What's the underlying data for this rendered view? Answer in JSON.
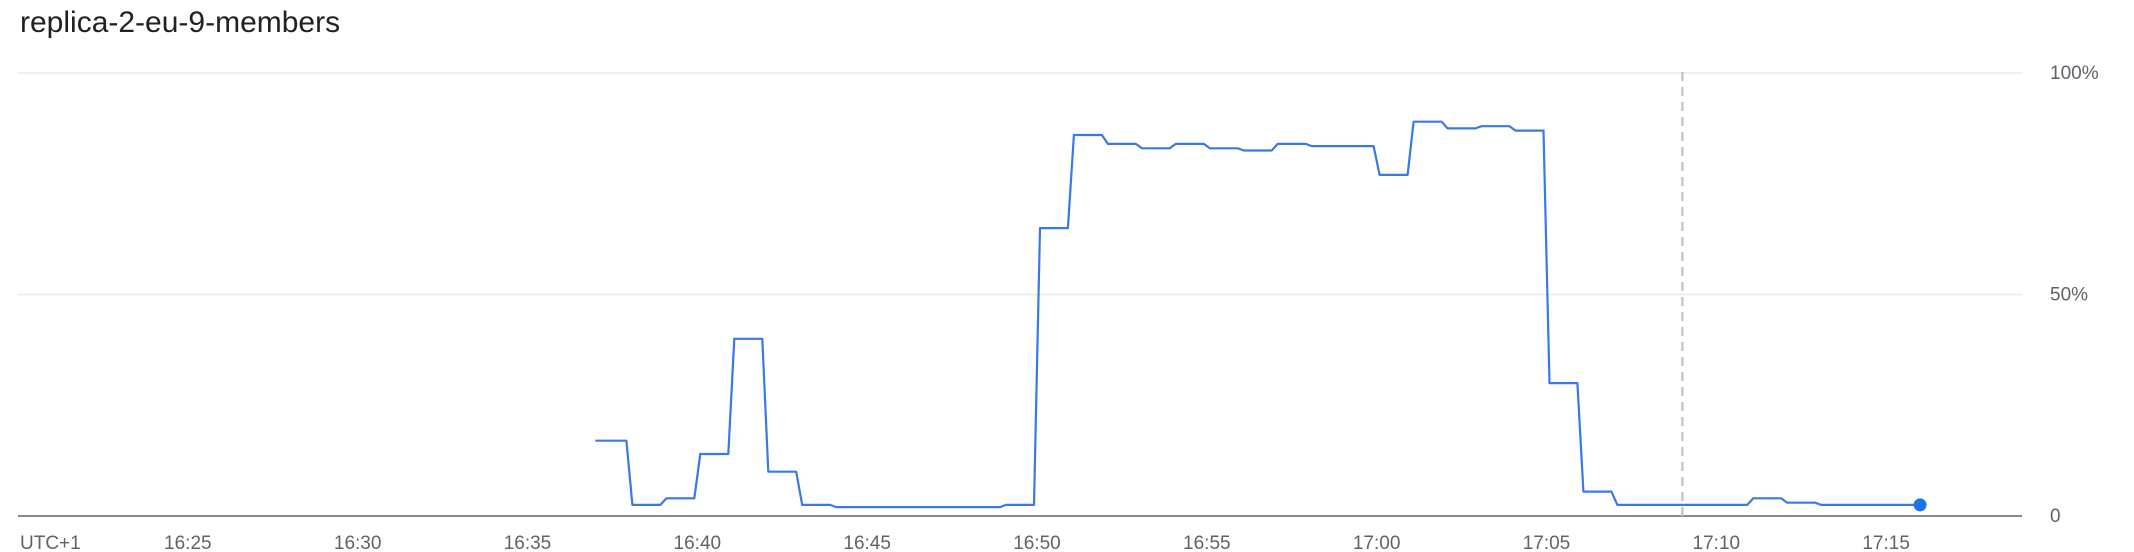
{
  "title": "replica-2-eu-9-members",
  "colors": {
    "series": "#3b78e7",
    "grid": "#e8eaed",
    "axis": "#5f6368",
    "cursor": "#c8c8c8",
    "text": "#5f6368"
  },
  "chart_data": {
    "type": "line",
    "title": "replica-2-eu-9-members",
    "xlabel": "",
    "ylabel": "",
    "timezone_label": "UTC+1",
    "x_ticks": [
      "16:25",
      "16:30",
      "16:35",
      "16:40",
      "16:45",
      "16:50",
      "16:55",
      "17:00",
      "17:05",
      "17:10",
      "17:15"
    ],
    "y_ticks": [
      "0",
      "50%",
      "100%"
    ],
    "xlim": [
      "16:20",
      "17:19"
    ],
    "ylim": [
      0,
      100
    ],
    "grid": true,
    "y_axis_position": "right",
    "cursor_time": "17:09",
    "series": [
      {
        "x": [
          "16:37",
          "16:38",
          "16:39",
          "16:40",
          "16:41",
          "16:42",
          "16:43",
          "16:44",
          "16:45",
          "16:46",
          "16:47",
          "16:48",
          "16:49",
          "16:50",
          "16:51",
          "16:52",
          "16:53",
          "16:54",
          "16:55",
          "16:56",
          "16:57",
          "16:58",
          "16:59",
          "17:00",
          "17:01",
          "17:02",
          "17:03",
          "17:04",
          "17:05",
          "17:06",
          "17:07",
          "17:08",
          "17:09",
          "17:10",
          "17:11",
          "17:12",
          "17:13",
          "17:14",
          "17:15",
          "17:16"
        ],
        "y": [
          17,
          2.5,
          4,
          14,
          40,
          10,
          2.5,
          2,
          2,
          2,
          2,
          2,
          2.5,
          65,
          86,
          84,
          83,
          84,
          83,
          82.5,
          84,
          83.5,
          83.5,
          77,
          89,
          87.5,
          88,
          87,
          30,
          5.5,
          2.5,
          2.5,
          2.5,
          2.5,
          4,
          3,
          2.5,
          2.5,
          2.5,
          2.5
        ]
      }
    ]
  }
}
